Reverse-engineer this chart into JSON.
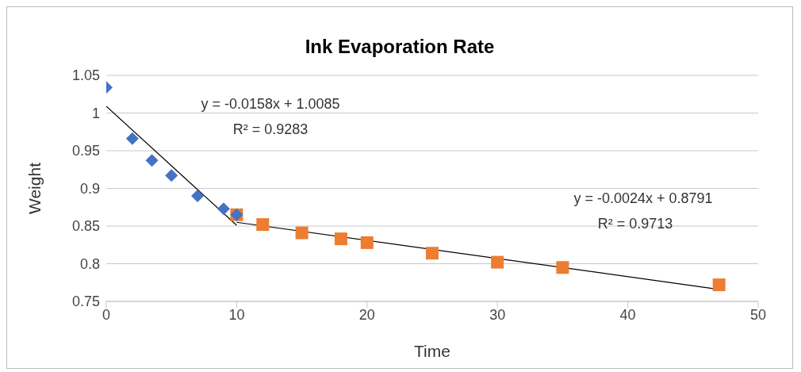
{
  "chart_data": {
    "type": "scatter",
    "title": "Ink Evaporation Rate",
    "xlabel": "Time",
    "ylabel": "Weight",
    "xlim": [
      0,
      50
    ],
    "xticks": [
      0,
      10,
      20,
      30,
      40,
      50
    ],
    "ylim": [
      0.75,
      1.05
    ],
    "yticks": [
      0.75,
      0.8,
      0.85,
      0.9,
      0.95,
      1,
      1.05
    ],
    "grid": "y",
    "series": [
      {
        "marker": "square",
        "color": "#ed7d31",
        "x": [
          10,
          12,
          15,
          18,
          20,
          25,
          30,
          35,
          47
        ],
        "values": [
          0.865,
          0.852,
          0.841,
          0.833,
          0.828,
          0.814,
          0.802,
          0.795,
          0.772
        ]
      },
      {
        "marker": "diamond",
        "color": "#4472c4",
        "x": [
          0,
          2,
          3.5,
          5,
          7,
          9,
          10
        ],
        "values": [
          1.034,
          0.966,
          0.937,
          0.917,
          0.89,
          0.873,
          0.865
        ]
      },
      {
        "type": "line",
        "color": "#000000",
        "x": [
          0,
          10
        ],
        "values": [
          1.009,
          0.851
        ]
      },
      {
        "type": "line",
        "color": "#000000",
        "x": [
          10,
          47
        ],
        "values": [
          0.855,
          0.766
        ]
      }
    ],
    "annotations": [
      "y = -0.0158x + 1.0085",
      "R² = 0.9283",
      "y = -0.0024x + 0.8791",
      "R² = 0.9713"
    ]
  }
}
